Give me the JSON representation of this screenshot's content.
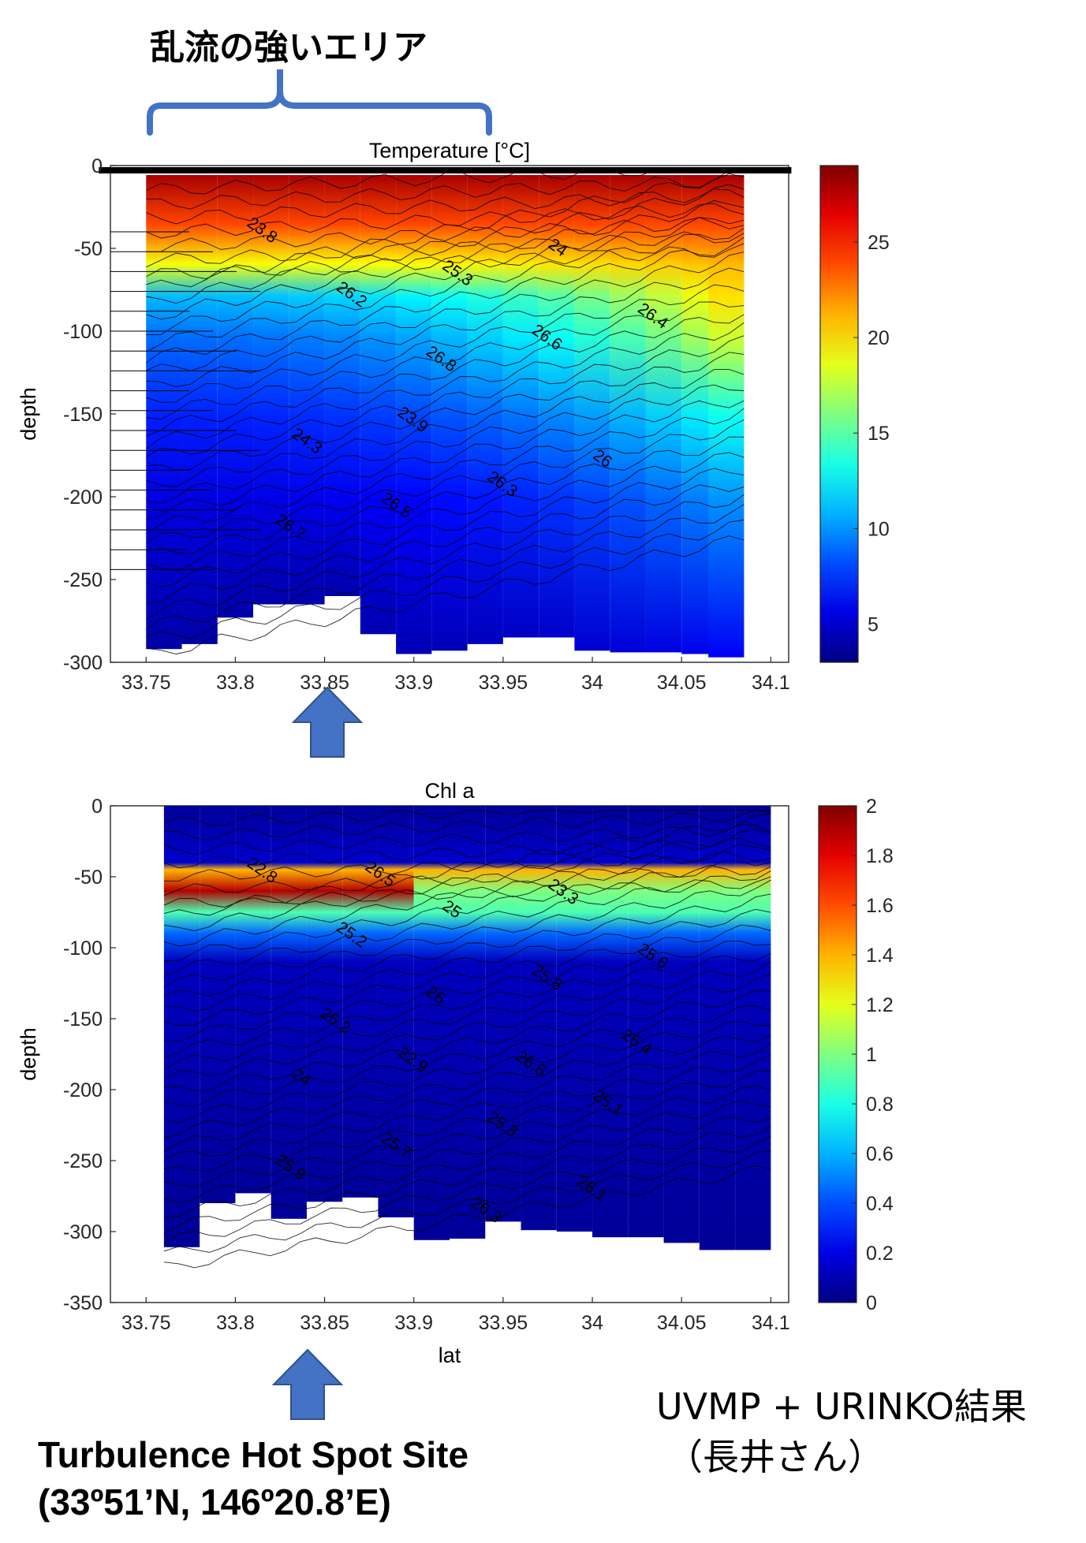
{
  "annotations": {
    "turbulence_heading": "乱流の強いエリア",
    "site_line1": "Turbulence Hot Spot Site",
    "site_line2": "(33º51’N, 146º20.8’E)",
    "credit_line1": "UVMP + URINKO結果",
    "credit_line2": "（長井さん）",
    "arrow_color": "#4472c4",
    "bracket_color": "#4472c4"
  },
  "chart_data": [
    {
      "type": "heatmap",
      "title": "Temperature [°C]",
      "xlabel": "",
      "ylabel": "depth",
      "xlim": [
        33.73,
        34.11
      ],
      "ylim": [
        -300,
        0
      ],
      "xticks": [
        "33.75",
        "33.8",
        "33.85",
        "33.9",
        "33.95",
        "34",
        "34.05",
        "34.1"
      ],
      "yticks": [
        "0",
        "-50",
        "-100",
        "-150",
        "-200",
        "-250",
        "-300"
      ],
      "colorbar": {
        "min": 3,
        "max": 29,
        "ticks": [
          "5",
          "10",
          "15",
          "20",
          "25"
        ],
        "colormap": "jet"
      },
      "profile_columns": [
        {
          "x": 33.76,
          "bottom": -292
        },
        {
          "x": 33.78,
          "bottom": -289
        },
        {
          "x": 33.8,
          "bottom": -273
        },
        {
          "x": 33.82,
          "bottom": -265
        },
        {
          "x": 33.84,
          "bottom": -265
        },
        {
          "x": 33.86,
          "bottom": -260
        },
        {
          "x": 33.88,
          "bottom": -283
        },
        {
          "x": 33.9,
          "bottom": -295
        },
        {
          "x": 33.92,
          "bottom": -293
        },
        {
          "x": 33.94,
          "bottom": -289
        },
        {
          "x": 33.96,
          "bottom": -285
        },
        {
          "x": 33.98,
          "bottom": -285
        },
        {
          "x": 34.0,
          "bottom": -293
        },
        {
          "x": 34.02,
          "bottom": -294
        },
        {
          "x": 34.04,
          "bottom": -294
        },
        {
          "x": 34.06,
          "bottom": -295
        },
        {
          "x": 34.075,
          "bottom": -297
        }
      ],
      "contour_labels": [
        "23.8",
        "23.9",
        "24",
        "24.3",
        "25.3",
        "26",
        "26.2",
        "26.3",
        "26.4",
        "26.5",
        "26.6",
        "26.7",
        "26.8"
      ]
    },
    {
      "type": "heatmap",
      "title": "Chl a",
      "xlabel": "lat",
      "ylabel": "depth",
      "xlim": [
        33.73,
        34.11
      ],
      "ylim": [
        -350,
        0
      ],
      "xticks": [
        "33.75",
        "33.8",
        "33.85",
        "33.9",
        "33.95",
        "34",
        "34.05",
        "34.1"
      ],
      "yticks": [
        "0",
        "-50",
        "-100",
        "-150",
        "-200",
        "-250",
        "-300",
        "-350"
      ],
      "colorbar": {
        "min": 0,
        "max": 2,
        "ticks": [
          "0",
          "0.2",
          "0.4",
          "0.6",
          "0.8",
          "1",
          "1.2",
          "1.4",
          "1.6",
          "1.8",
          "2"
        ],
        "colormap": "jet"
      },
      "profile_columns": [
        {
          "x": 33.77,
          "bottom": -311
        },
        {
          "x": 33.79,
          "bottom": -280
        },
        {
          "x": 33.81,
          "bottom": -273
        },
        {
          "x": 33.83,
          "bottom": -291
        },
        {
          "x": 33.85,
          "bottom": -279
        },
        {
          "x": 33.87,
          "bottom": -276
        },
        {
          "x": 33.89,
          "bottom": -290
        },
        {
          "x": 33.91,
          "bottom": -306
        },
        {
          "x": 33.93,
          "bottom": -305
        },
        {
          "x": 33.95,
          "bottom": -293
        },
        {
          "x": 33.97,
          "bottom": -299
        },
        {
          "x": 33.99,
          "bottom": -300
        },
        {
          "x": 34.01,
          "bottom": -304
        },
        {
          "x": 34.03,
          "bottom": -304
        },
        {
          "x": 34.05,
          "bottom": -308
        },
        {
          "x": 34.07,
          "bottom": -313
        },
        {
          "x": 34.09,
          "bottom": -313
        }
      ],
      "chl_max_layer": {
        "top": -45,
        "bottom": -75,
        "value": 1.9
      },
      "contour_labels": [
        "22.8",
        "22.9",
        "23.3",
        "24",
        "25",
        "25.1",
        "25.2",
        "25.3",
        "25.6",
        "25.7",
        "25.8",
        "25.9",
        "26",
        "26.1",
        "26.2",
        "26.3",
        "26.4",
        "26.5",
        "26.6"
      ]
    }
  ]
}
